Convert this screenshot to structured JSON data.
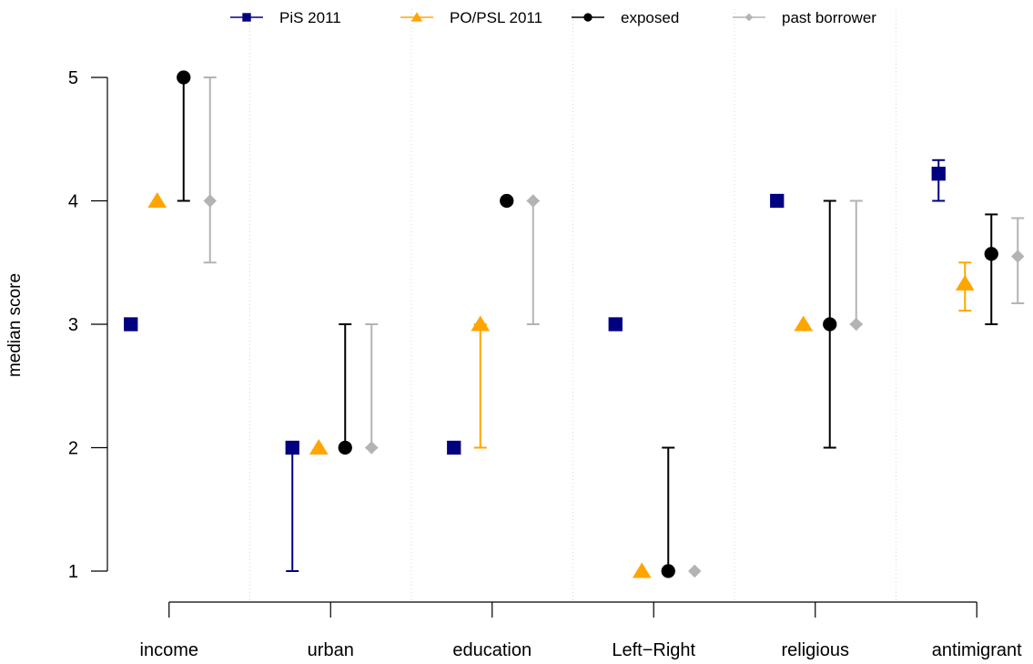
{
  "chart_data": {
    "type": "scatter",
    "ylabel": "median score",
    "xlabel": "",
    "ylim": [
      1,
      5
    ],
    "yticks": [
      "1",
      "2",
      "3",
      "4",
      "5"
    ],
    "categories": [
      "income",
      "urban",
      "education",
      "Left−Right",
      "religious",
      "antimigrant"
    ],
    "legend_position": "top",
    "grid": "vertical dotted separators between categories",
    "series": [
      {
        "name": "PiS 2011",
        "color": "#000080",
        "marker": "square",
        "points": [
          {
            "value": 3
          },
          {
            "value": 2,
            "low": 1,
            "high": 2
          },
          {
            "value": 2
          },
          {
            "value": 3
          },
          {
            "value": 4
          },
          {
            "value": 4.22,
            "low": 4,
            "high": 4.33
          }
        ]
      },
      {
        "name": "PO/PSL 2011",
        "color": "#FFA500",
        "marker": "triangle",
        "points": [
          {
            "value": 4
          },
          {
            "value": 2
          },
          {
            "value": 3,
            "low": 2,
            "high": 3
          },
          {
            "value": 1
          },
          {
            "value": 3
          },
          {
            "value": 3.33,
            "low": 3.11,
            "high": 3.5
          }
        ]
      },
      {
        "name": "exposed",
        "color": "#000000",
        "marker": "circle",
        "points": [
          {
            "value": 5,
            "low": 4,
            "high": 5
          },
          {
            "value": 2,
            "low": 2,
            "high": 3
          },
          {
            "value": 4
          },
          {
            "value": 1,
            "low": 1,
            "high": 2
          },
          {
            "value": 3,
            "low": 2,
            "high": 4
          },
          {
            "value": 3.57,
            "low": 3,
            "high": 3.89
          }
        ]
      },
      {
        "name": "past borrower",
        "color": "#B3B3B3",
        "marker": "diamond",
        "points": [
          {
            "value": 4,
            "low": 3.5,
            "high": 5
          },
          {
            "value": 2,
            "low": 2,
            "high": 3
          },
          {
            "value": 4,
            "low": 3,
            "high": 4
          },
          {
            "value": 1
          },
          {
            "value": 3,
            "low": 3,
            "high": 4
          },
          {
            "value": 3.55,
            "low": 3.17,
            "high": 3.86
          }
        ]
      }
    ]
  }
}
